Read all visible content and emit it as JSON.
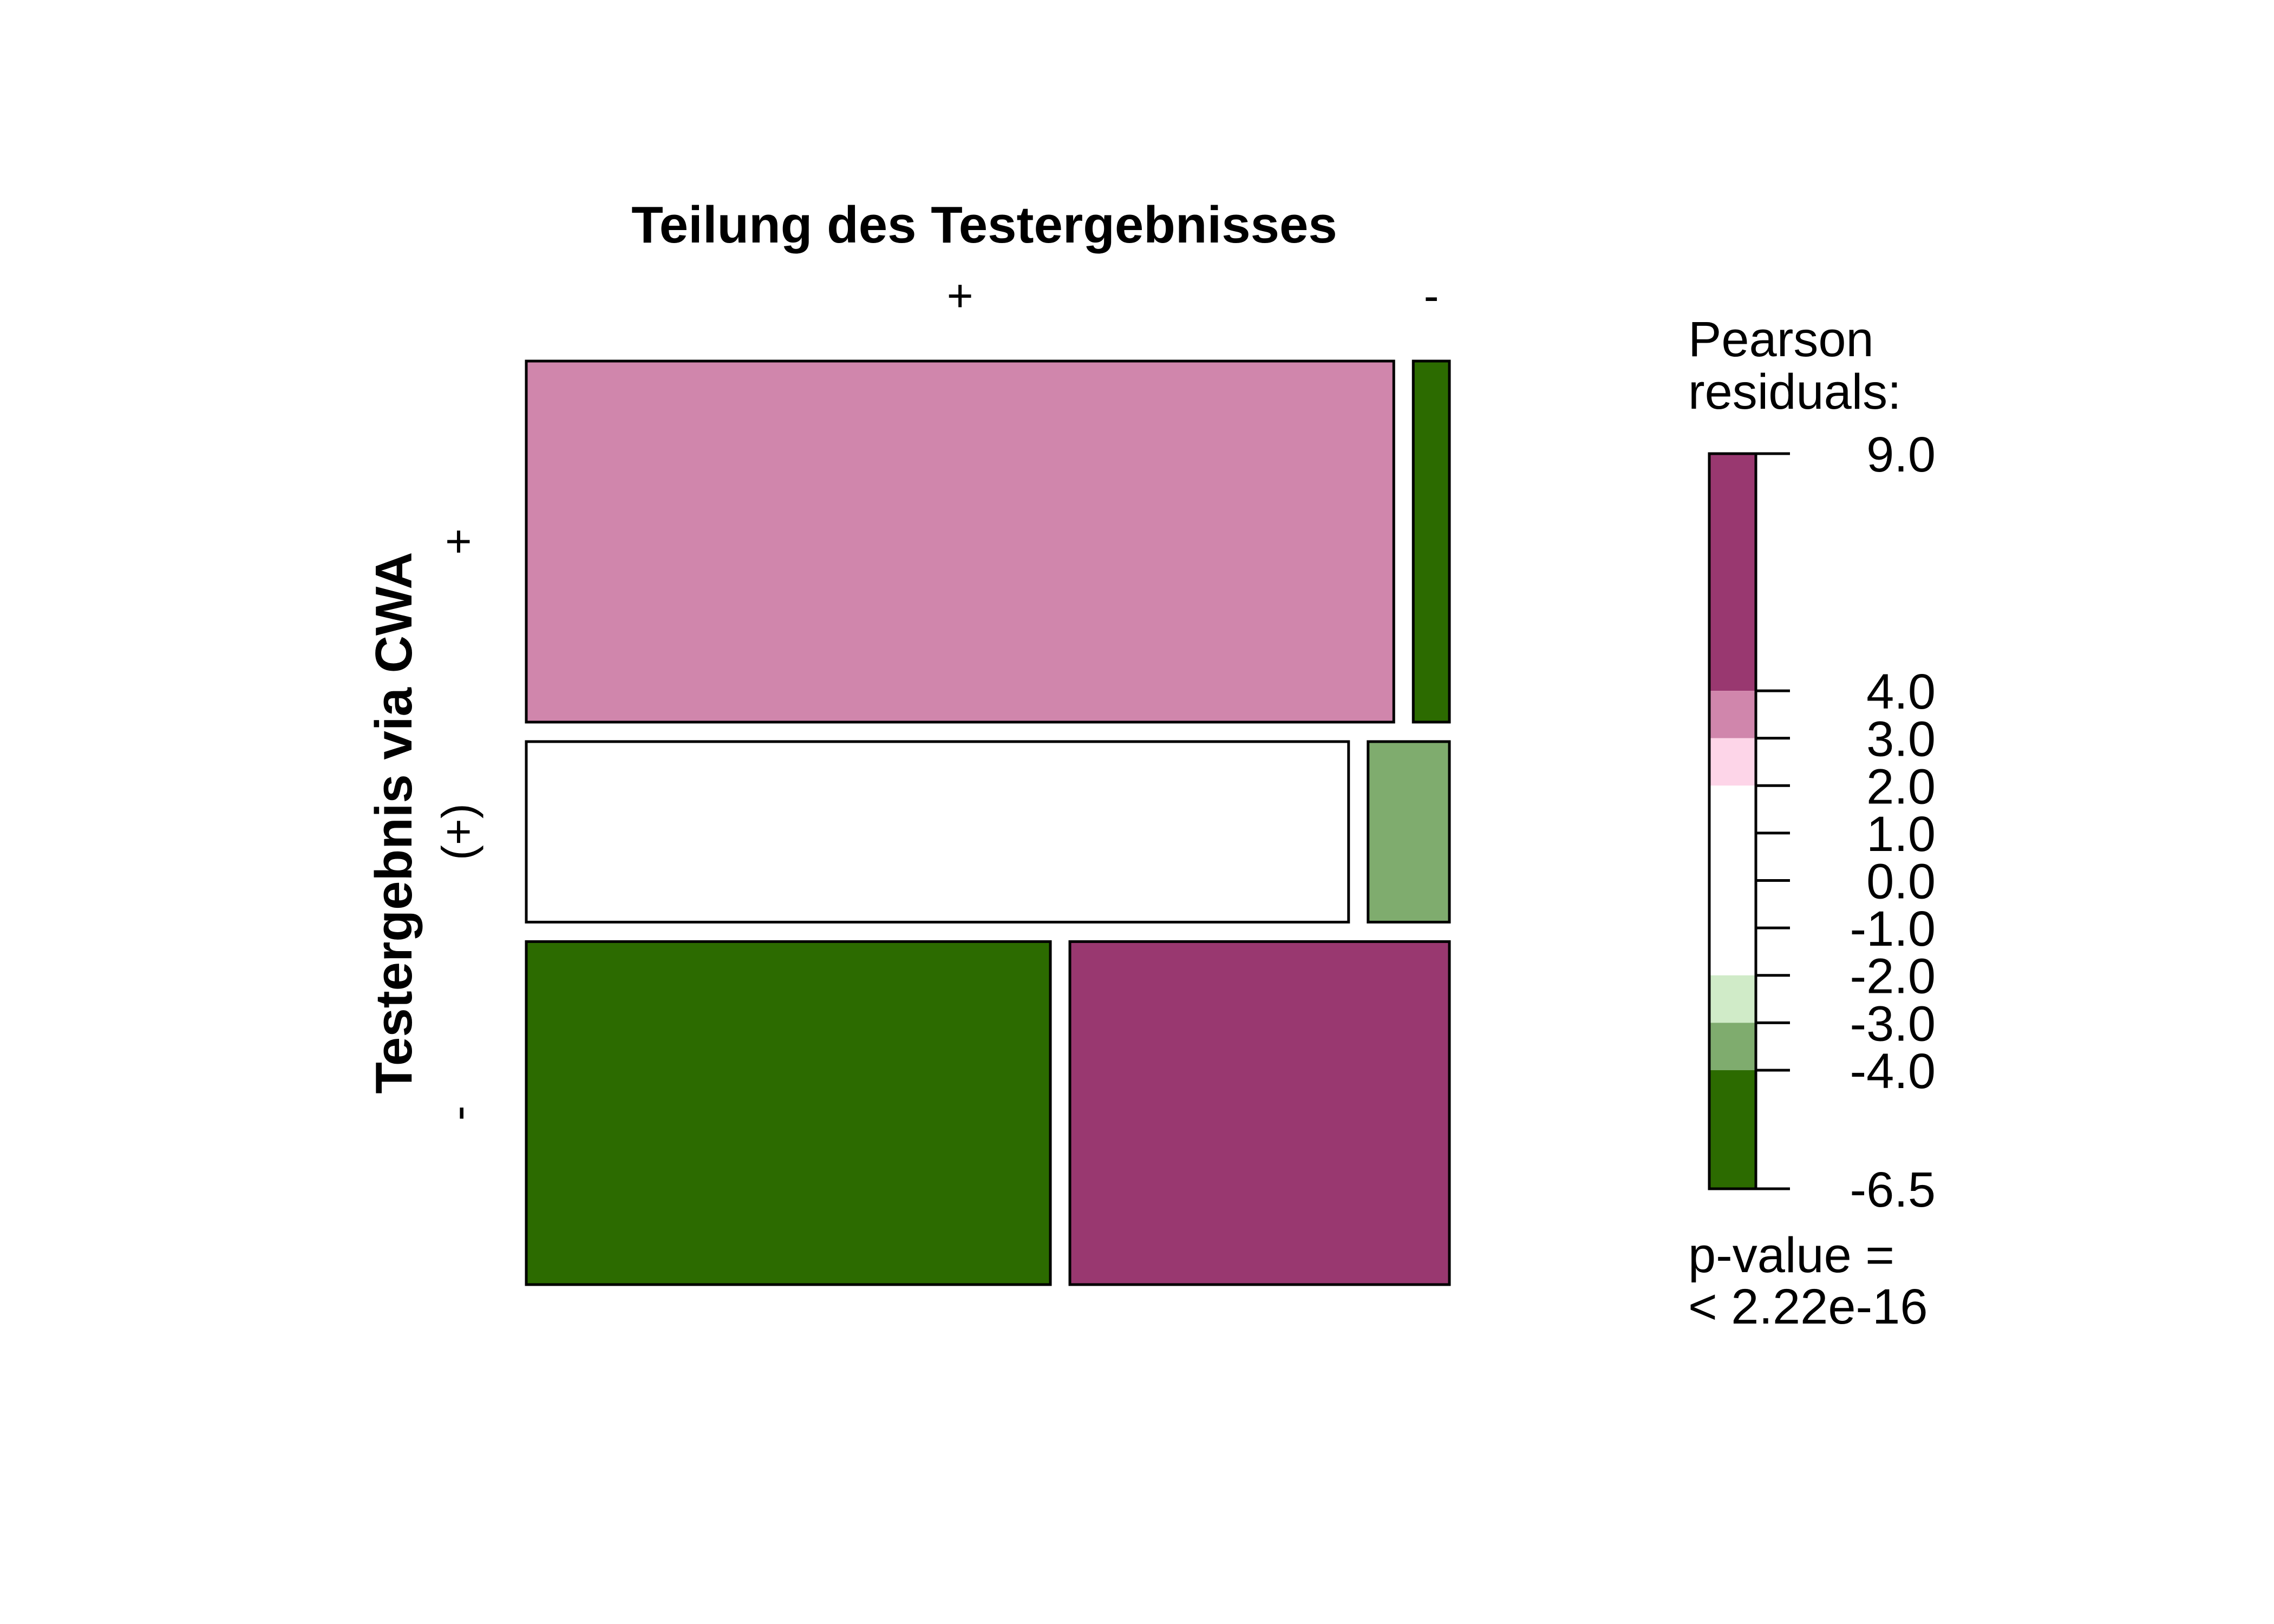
{
  "chart_data": {
    "type": "mosaic",
    "title": "Teilung des Testergebnisses",
    "ylabel": "Testergebnis via CWA",
    "column_levels": [
      "+",
      "-"
    ],
    "row_levels": [
      "+",
      "(+)",
      "-"
    ],
    "row_shares": [
      0.4,
      0.2,
      0.38
    ],
    "column_shares_by_row": [
      [
        0.96,
        0.04
      ],
      [
        0.91,
        0.09
      ],
      [
        0.58,
        0.42
      ]
    ],
    "residual_class": [
      [
        3.5,
        -5.0
      ],
      [
        0.0,
        -3.5
      ],
      [
        -5.0,
        6.0
      ]
    ],
    "legend": {
      "title_line1": "Pearson",
      "title_line2": "residuals:",
      "ticks": [
        "9.0",
        "4.0",
        "3.0",
        "2.0",
        "1.0",
        "0.0",
        "-1.0",
        "-2.0",
        "-3.0",
        "-4.0",
        "-6.5"
      ],
      "tick_values": [
        9.0,
        4.0,
        3.0,
        2.0,
        1.0,
        0.0,
        -1.0,
        -2.0,
        -3.0,
        -4.0,
        -6.5
      ],
      "bands": [
        {
          "from": 4.0,
          "to": 9.0,
          "color": "#993870"
        },
        {
          "from": 3.0,
          "to": 4.0,
          "color": "#D086AC"
        },
        {
          "from": 2.0,
          "to": 3.0,
          "color": "#FDD5E8"
        },
        {
          "from": -2.0,
          "to": 2.0,
          "color": "#FFFFFF"
        },
        {
          "from": -3.0,
          "to": -2.0,
          "color": "#D0EBC8"
        },
        {
          "from": -4.0,
          "to": -3.0,
          "color": "#7FAC6E"
        },
        {
          "from": -6.5,
          "to": -4.0,
          "color": "#2C6B00"
        }
      ],
      "pvalue_line1": "p-value =",
      "pvalue_line2": "< 2.22e-16"
    }
  }
}
